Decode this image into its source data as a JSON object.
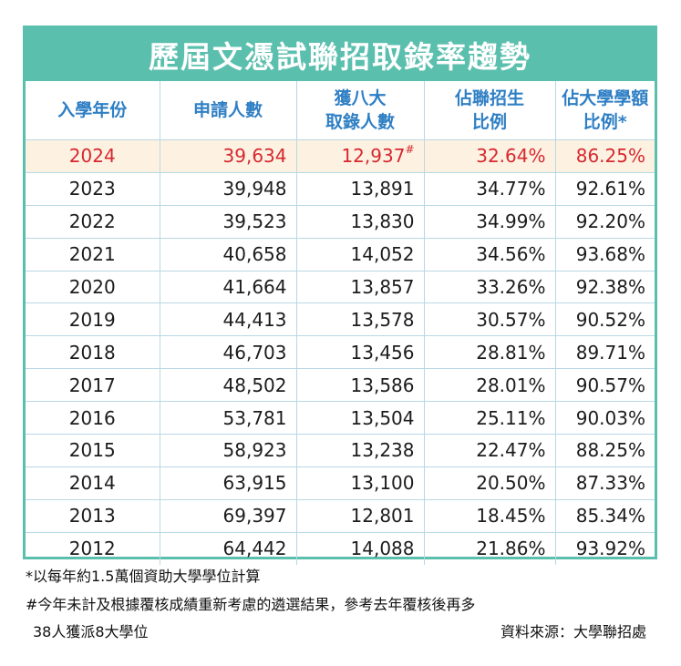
{
  "title": "歷屆文憑試聯招取錄率趨勢",
  "headers": [
    {
      "line1": "入學年份",
      "line2": ""
    },
    {
      "line1": "申請人數",
      "line2": ""
    },
    {
      "line1": "獲八大",
      "line2": "取錄人數"
    },
    {
      "line1": "佔聯招生",
      "line2": "比例"
    },
    {
      "line1": "佔大學學額",
      "line2": "比例*"
    }
  ],
  "rows": [
    {
      "year": "2024",
      "applicants": "39,634",
      "admitted": "12,937",
      "admitted_mark": "#",
      "ratio_applicants": "32.64%",
      "ratio_places": "86.25%",
      "highlight": true
    },
    {
      "year": "2023",
      "applicants": "39,948",
      "admitted": "13,891",
      "admitted_mark": "",
      "ratio_applicants": "34.77%",
      "ratio_places": "92.61%"
    },
    {
      "year": "2022",
      "applicants": "39,523",
      "admitted": "13,830",
      "admitted_mark": "",
      "ratio_applicants": "34.99%",
      "ratio_places": "92.20%"
    },
    {
      "year": "2021",
      "applicants": "40,658",
      "admitted": "14,052",
      "admitted_mark": "",
      "ratio_applicants": "34.56%",
      "ratio_places": "93.68%"
    },
    {
      "year": "2020",
      "applicants": "41,664",
      "admitted": "13,857",
      "admitted_mark": "",
      "ratio_applicants": "33.26%",
      "ratio_places": "92.38%"
    },
    {
      "year": "2019",
      "applicants": "44,413",
      "admitted": "13,578",
      "admitted_mark": "",
      "ratio_applicants": "30.57%",
      "ratio_places": "90.52%"
    },
    {
      "year": "2018",
      "applicants": "46,703",
      "admitted": "13,456",
      "admitted_mark": "",
      "ratio_applicants": "28.81%",
      "ratio_places": "89.71%"
    },
    {
      "year": "2017",
      "applicants": "48,502",
      "admitted": "13,586",
      "admitted_mark": "",
      "ratio_applicants": "28.01%",
      "ratio_places": "90.57%"
    },
    {
      "year": "2016",
      "applicants": "53,781",
      "admitted": "13,504",
      "admitted_mark": "",
      "ratio_applicants": "25.11%",
      "ratio_places": "90.03%"
    },
    {
      "year": "2015",
      "applicants": "58,923",
      "admitted": "13,238",
      "admitted_mark": "",
      "ratio_applicants": "22.47%",
      "ratio_places": "88.25%"
    },
    {
      "year": "2014",
      "applicants": "63,915",
      "admitted": "13,100",
      "admitted_mark": "",
      "ratio_applicants": "20.50%",
      "ratio_places": "87.33%"
    },
    {
      "year": "2013",
      "applicants": "69,397",
      "admitted": "12,801",
      "admitted_mark": "",
      "ratio_applicants": "18.45%",
      "ratio_places": "85.34%"
    },
    {
      "year": "2012",
      "applicants": "64,442",
      "admitted": "14,088",
      "admitted_mark": "",
      "ratio_applicants": "21.86%",
      "ratio_places": "93.92%"
    }
  ],
  "notes": {
    "note1": "*以每年約1.5萬個資助大學學位計算",
    "note2": "#今年未計及根據覆核成績重新考慮的遴選結果，參考去年覆核後再多",
    "note3": "38人獲派8大學位",
    "source": "資料來源：大學聯招處"
  },
  "colors": {
    "accent": "#5bbfae",
    "header_text": "#2f7fc4",
    "highlight_row_bg": "#fdf2e2",
    "highlight_text": "#d7282f"
  }
}
